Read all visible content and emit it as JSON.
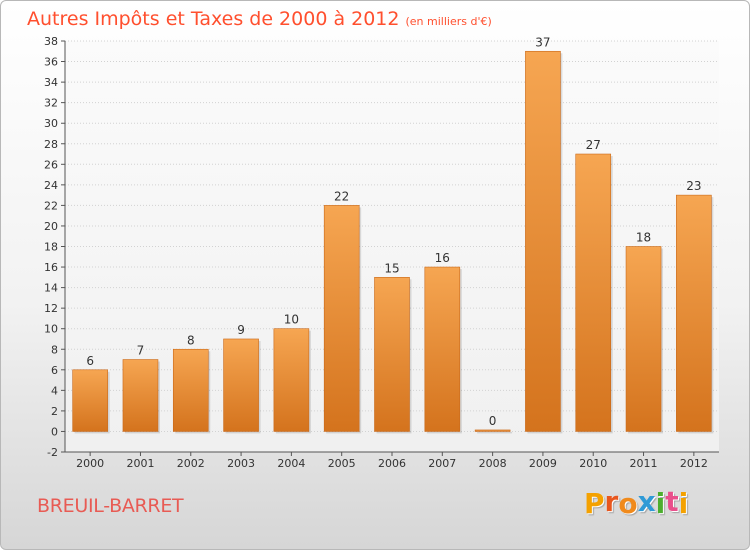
{
  "header": {
    "title": "Autres Impôts et Taxes de 2000 à 2012",
    "subtitle": "(en milliers d'€)"
  },
  "footer": {
    "place": "BREUIL-BARRET",
    "logo_letters": [
      "P",
      "r",
      "o",
      "x",
      "i",
      "t",
      "i"
    ],
    "logo_colors": [
      "#f4a100",
      "#e8571e",
      "#f08a1c",
      "#2f9ad6",
      "#4cae2e",
      "#e94f8b",
      "#f4a100"
    ]
  },
  "colors": {
    "bar_light": "#f6a652",
    "bar_dark": "#d4731d",
    "title": "#ff4f2e",
    "place": "#e85b54"
  },
  "chart_data": {
    "type": "bar",
    "title": "Autres Impôts et Taxes de 2000 à 2012",
    "subtitle": "(en milliers d'€)",
    "categories": [
      "2000",
      "2001",
      "2002",
      "2003",
      "2004",
      "2005",
      "2006",
      "2007",
      "2008",
      "2009",
      "2010",
      "2011",
      "2012"
    ],
    "values": [
      6,
      7,
      8,
      9,
      10,
      22,
      15,
      16,
      0,
      37,
      27,
      18,
      23
    ],
    "ylim": [
      -2,
      38
    ],
    "yticks": [
      -2,
      0,
      2,
      4,
      6,
      8,
      10,
      12,
      14,
      16,
      18,
      20,
      22,
      24,
      26,
      28,
      30,
      32,
      34,
      36,
      38
    ],
    "grid": true,
    "legend": "none"
  }
}
